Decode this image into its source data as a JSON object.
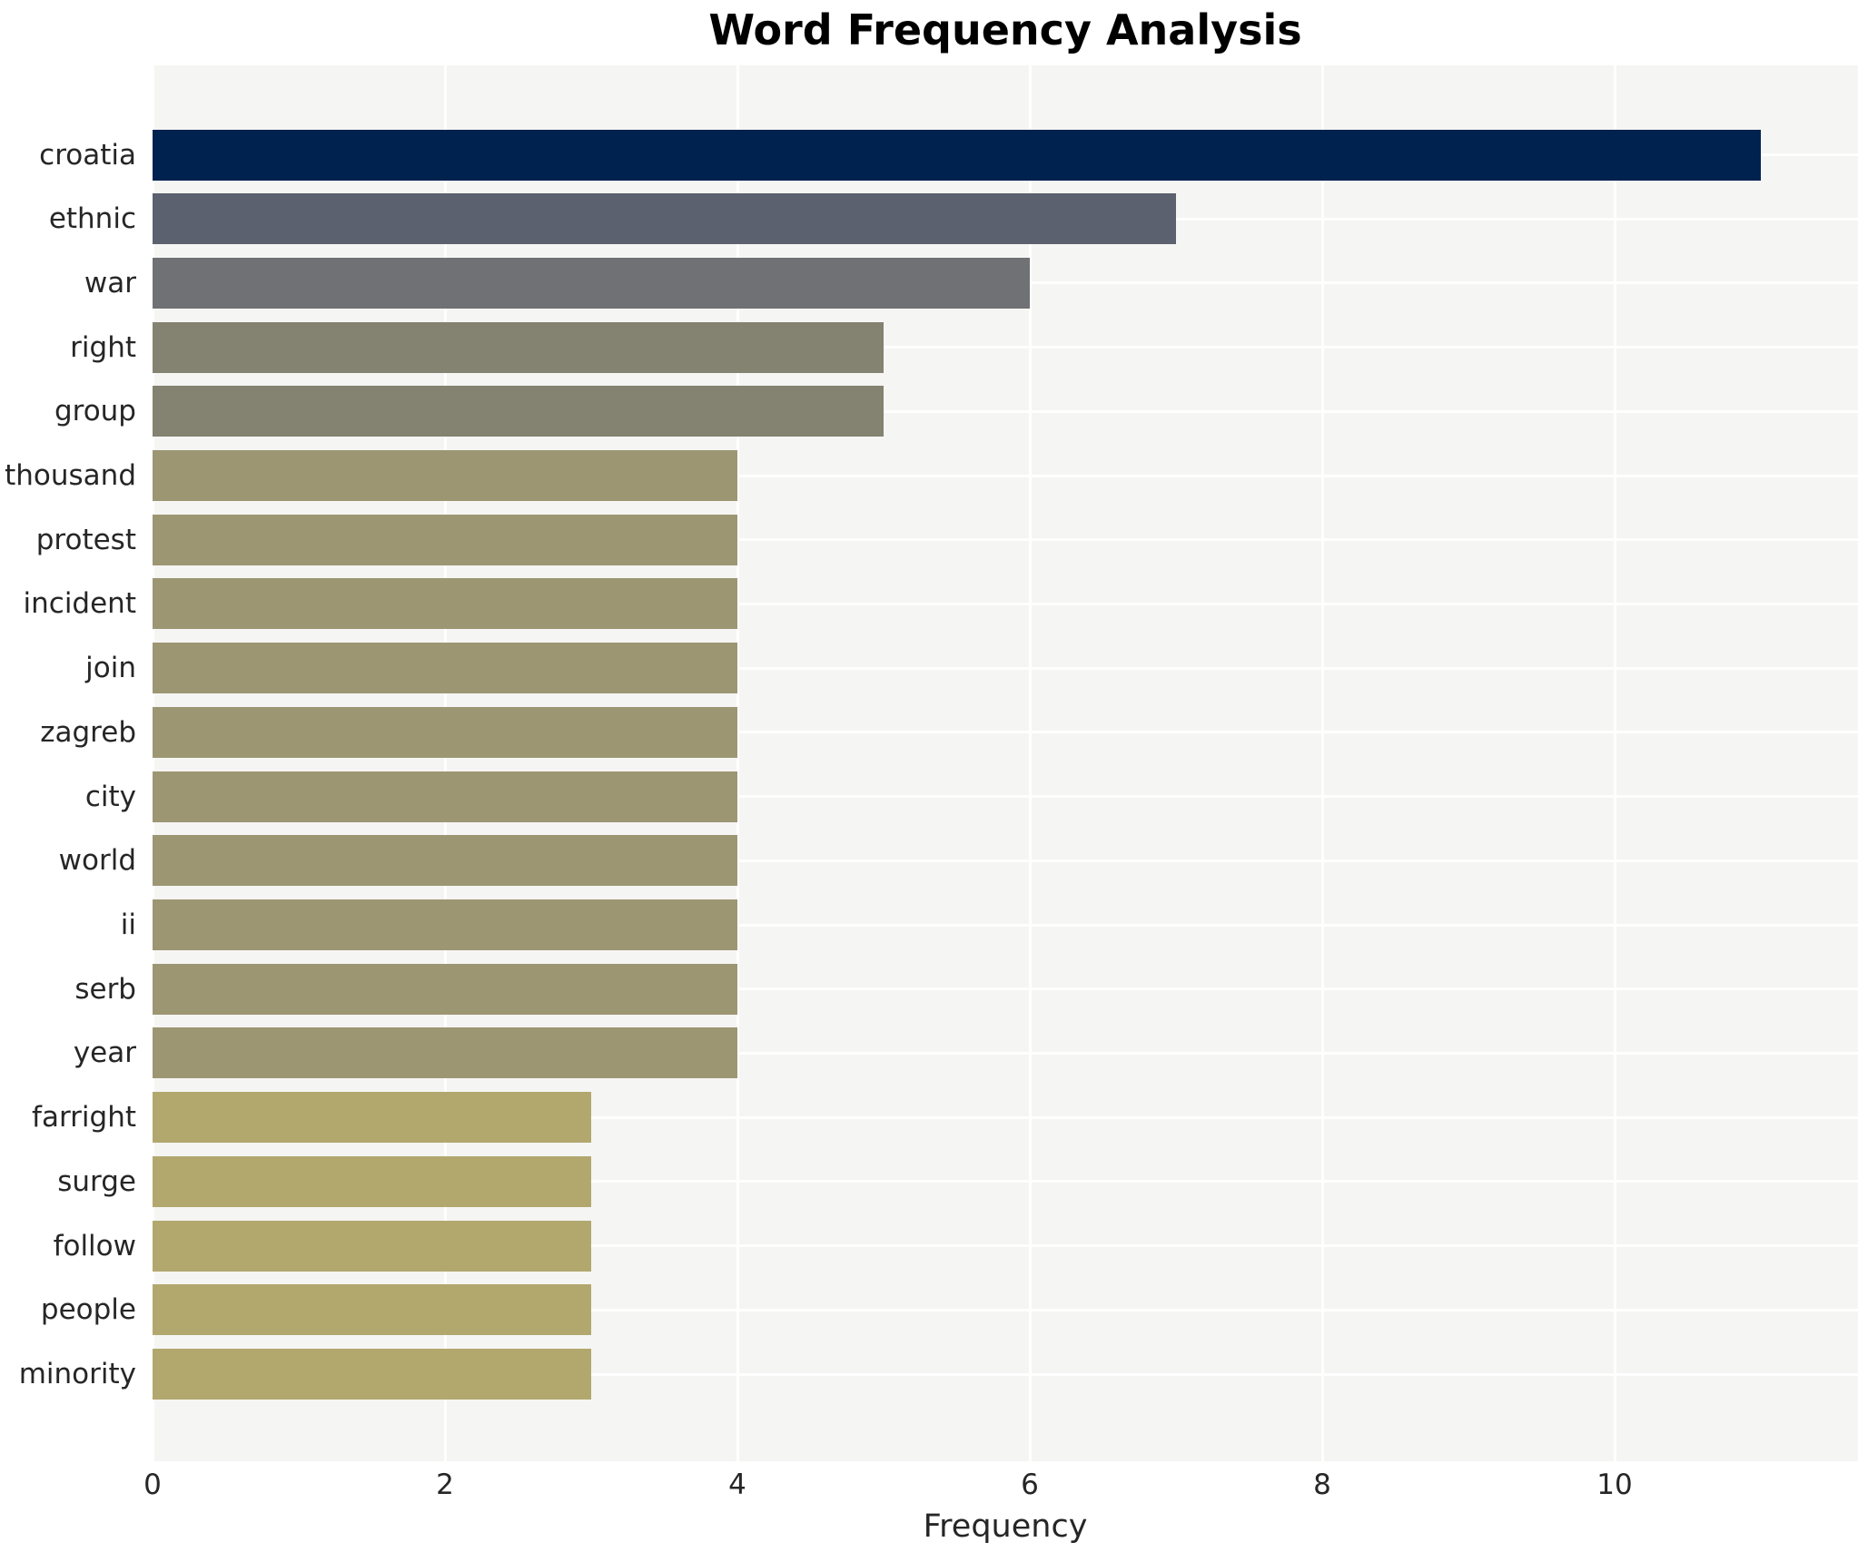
{
  "title": "Word Frequency Analysis",
  "chart_data": {
    "type": "bar",
    "orientation": "horizontal",
    "title": "Word Frequency Analysis",
    "xlabel": "Frequency",
    "ylabel": "",
    "categories": [
      "croatia",
      "ethnic",
      "war",
      "right",
      "group",
      "thousand",
      "protest",
      "incident",
      "join",
      "zagreb",
      "city",
      "world",
      "ii",
      "serb",
      "year",
      "farright",
      "surge",
      "follow",
      "people",
      "minority"
    ],
    "values": [
      11,
      7,
      6,
      5,
      5,
      4,
      4,
      4,
      4,
      4,
      4,
      4,
      4,
      4,
      4,
      3,
      3,
      3,
      3,
      3
    ],
    "bar_colors": [
      "#00224e",
      "#5c616f",
      "#707174",
      "#848270",
      "#848270",
      "#9d9673",
      "#9d9673",
      "#9d9673",
      "#9d9673",
      "#9d9673",
      "#9d9673",
      "#9d9673",
      "#9d9673",
      "#9d9673",
      "#9d9673",
      "#b2a86e",
      "#b2a86e",
      "#b2a86e",
      "#b2a86e",
      "#b2a86e"
    ],
    "xticks": [
      0,
      2,
      4,
      6,
      8,
      10
    ],
    "xlim": [
      0,
      11.67
    ],
    "grid": true,
    "grid_color": "#ffffff",
    "plot_bg": "#f5f5f3",
    "legend": false
  }
}
